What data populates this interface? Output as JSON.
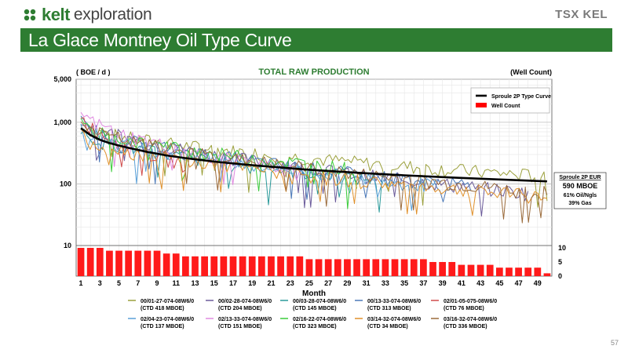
{
  "header": {
    "logo_name": "kelt",
    "logo_subtitle": "exploration",
    "partner_logo": "TSX KEL",
    "brand_color": "#2e7d32"
  },
  "slide": {
    "title": "La Glace Montney Oil Type Curve",
    "page_number": "57"
  },
  "chart_data": {
    "type": "line",
    "title": "TOTAL RAW PRODUCTION",
    "y_left_label": "( BOE / d )",
    "y_right_label": "(Well Count)",
    "xlabel": "Month",
    "x_range": [
      1,
      50
    ],
    "x_ticks": [
      "1",
      "3",
      "5",
      "7",
      "9",
      "11",
      "13",
      "15",
      "17",
      "19",
      "21",
      "23",
      "25",
      "27",
      "29",
      "31",
      "33",
      "35",
      "37",
      "39",
      "41",
      "43",
      "45",
      "47",
      "49"
    ],
    "y_scale": "log",
    "y_range": [
      10,
      5000
    ],
    "y_ticks": [
      "10",
      "100",
      "1,000",
      "5,000"
    ],
    "y_right_range": [
      0,
      10
    ],
    "y_right_ticks": [
      "0",
      "5",
      "10"
    ],
    "grid": true,
    "legend_position": "top-right",
    "legend": [
      {
        "name": "Sproule 2P Type Curve",
        "color": "#000000",
        "kind": "line"
      },
      {
        "name": "Well Count",
        "color": "#ff0000",
        "kind": "bar"
      }
    ],
    "annotation": {
      "title": "Sproule 2P EUR",
      "value": "590 MBOE",
      "line1": "61% Oil/Ngls",
      "line2": "39% Gas"
    },
    "type_curve": {
      "name": "Sproule 2P Type Curve",
      "x": [
        1,
        2,
        3,
        4,
        5,
        6,
        8,
        10,
        12,
        15,
        18,
        21,
        25,
        30,
        35,
        40,
        45,
        50
      ],
      "y": [
        800,
        620,
        520,
        460,
        420,
        385,
        330,
        290,
        262,
        230,
        208,
        190,
        170,
        152,
        138,
        127,
        118,
        110
      ]
    },
    "well_count": {
      "name": "Well Count",
      "x": [
        1,
        2,
        3,
        4,
        5,
        6,
        7,
        8,
        9,
        10,
        11,
        12,
        13,
        14,
        15,
        16,
        17,
        18,
        19,
        20,
        21,
        22,
        23,
        24,
        25,
        26,
        27,
        28,
        29,
        30,
        31,
        32,
        33,
        34,
        35,
        36,
        37,
        38,
        39,
        40,
        41,
        42,
        43,
        44,
        45,
        46,
        47,
        48,
        49,
        50
      ],
      "values": [
        10,
        10,
        10,
        9,
        9,
        9,
        9,
        9,
        9,
        8,
        8,
        7,
        7,
        7,
        7,
        7,
        7,
        7,
        7,
        7,
        7,
        7,
        7,
        7,
        6,
        6,
        6,
        6,
        6,
        6,
        6,
        6,
        6,
        6,
        6,
        6,
        6,
        5,
        5,
        5,
        4,
        4,
        4,
        4,
        3,
        3,
        3,
        3,
        3,
        1
      ]
    },
    "well_series": [
      {
        "name": "00/01-27-074-08W6/0",
        "eur": "(CTD 418 MBOE)",
        "color": "#9ba03c",
        "months": 50,
        "start": 900,
        "end": 130
      },
      {
        "name": "00/02-28-074-08W6/0",
        "eur": "(CTD 204 MBOE)",
        "color": "#6a5a9a",
        "months": 48,
        "start": 1100,
        "end": 70
      },
      {
        "name": "00/03-28-074-08W6/0",
        "eur": "(CTD 145 MBOE)",
        "color": "#2a9a9a",
        "months": 33,
        "start": 700,
        "end": 110
      },
      {
        "name": "00/13-33-074-08W6/0",
        "eur": "(CTD 313 MBOE)",
        "color": "#4a78b8",
        "months": 42,
        "start": 1000,
        "end": 90
      },
      {
        "name": "02/01-05-075-08W6/0",
        "eur": "(CTD 76 MBOE)",
        "color": "#d04a4a",
        "months": 12,
        "start": 1300,
        "end": 200
      },
      {
        "name": "02/04-23-074-08W6/0",
        "eur": "(CTD 137 MBOE)",
        "color": "#5aa0d8",
        "months": 39,
        "start": 800,
        "end": 90
      },
      {
        "name": "02/13-33-074-08W6/0",
        "eur": "(CTD 151 MBOE)",
        "color": "#e08ae0",
        "months": 24,
        "start": 1500,
        "end": 150
      },
      {
        "name": "02/16-22-074-08W6/0",
        "eur": "(CTD 323 MBOE)",
        "color": "#3acc3a",
        "months": 30,
        "start": 900,
        "end": 170
      },
      {
        "name": "03/14-32-074-08W6/0",
        "eur": "(CTD 34 MBOE)",
        "color": "#e0902a",
        "months": 50,
        "start": 600,
        "end": 60
      },
      {
        "name": "03/16-32-074-08W6/0",
        "eur": "(CTD 336 MBOE)",
        "color": "#9a6a3a",
        "months": 50,
        "start": 950,
        "end": 70
      }
    ]
  }
}
